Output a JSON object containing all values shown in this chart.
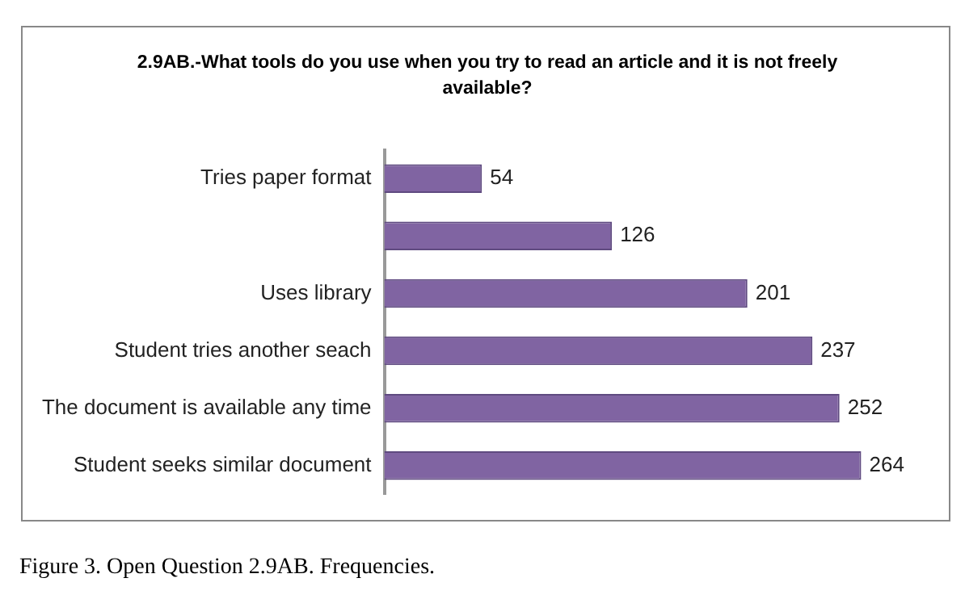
{
  "chart_data": {
    "type": "bar",
    "orientation": "horizontal",
    "title": "2.9AB.-What tools do you use when you try to read an article and it is not freely available?",
    "categories": [
      "Tries paper format",
      null,
      "Uses library",
      "Student tries another seach",
      "The document is available any time",
      "Student seeks similar document"
    ],
    "values": [
      54,
      126,
      201,
      237,
      252,
      264
    ],
    "color": "#8064a2",
    "data_labels": true,
    "annotations": [
      "Figure 3. Open Question 2.9AB. Frequencies."
    ]
  }
}
